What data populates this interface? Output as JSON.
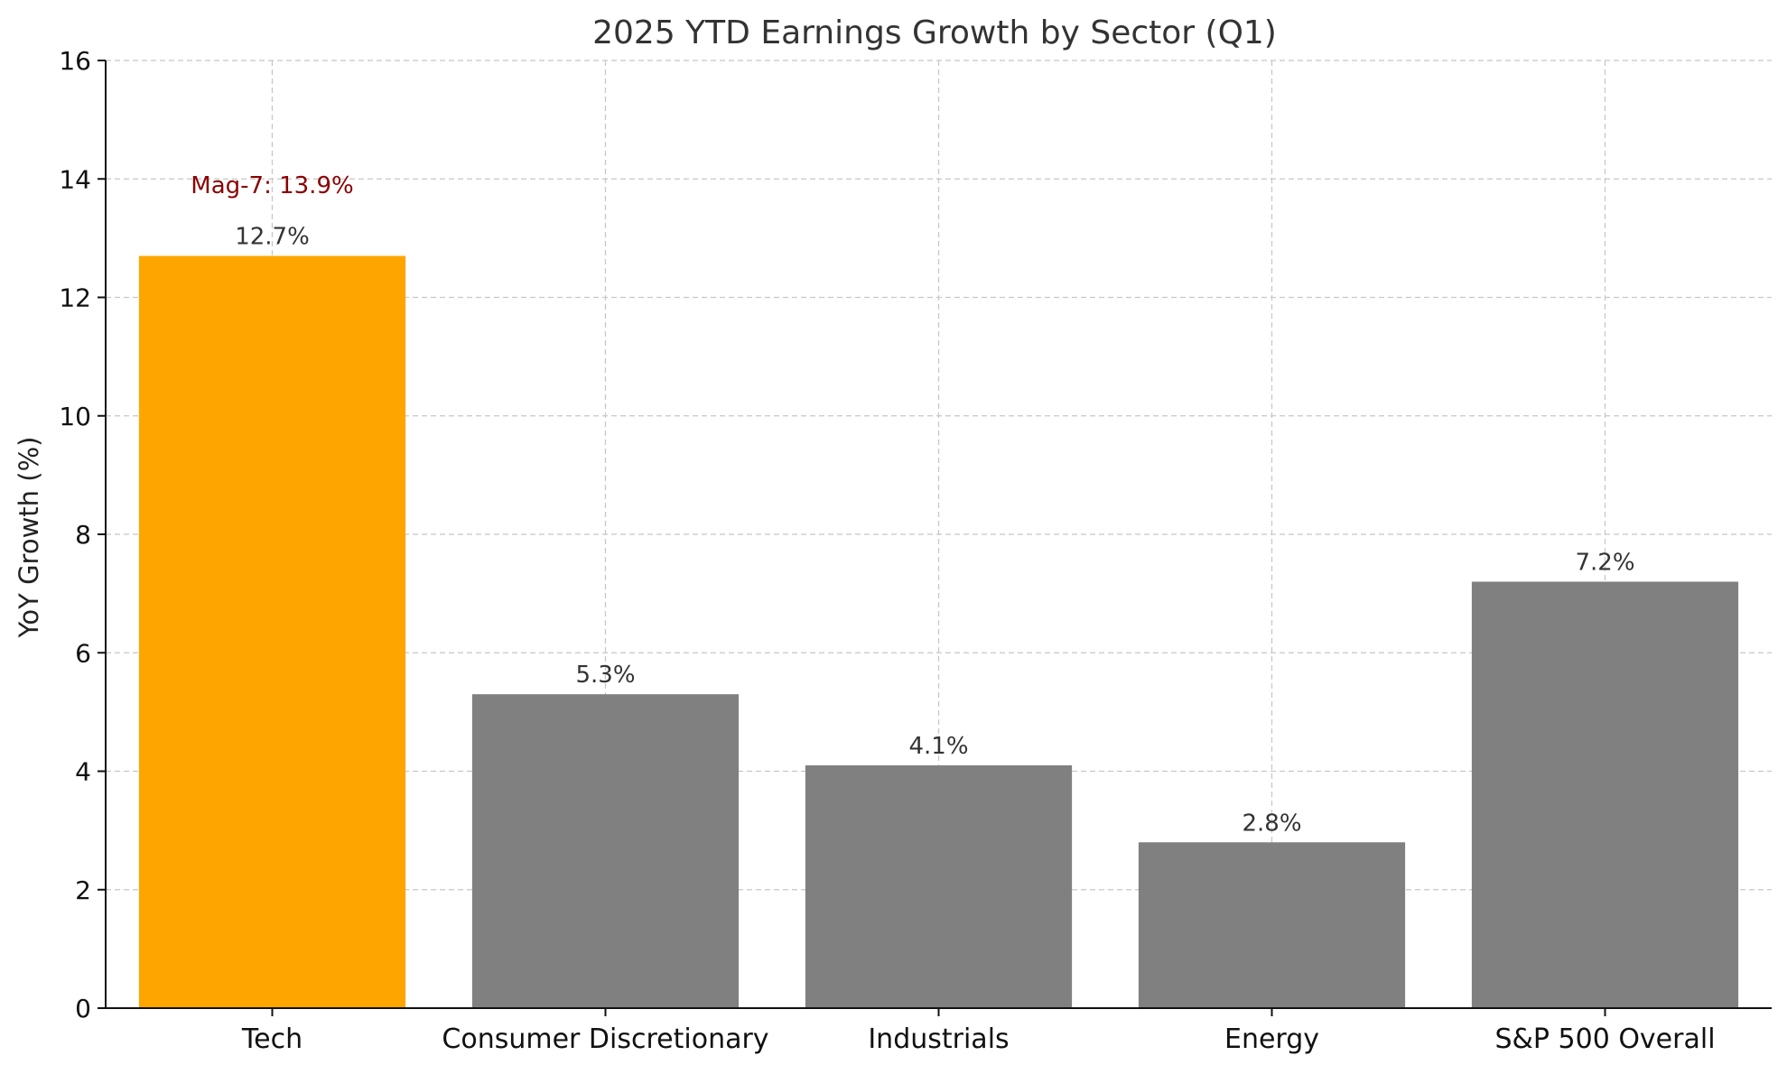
{
  "chart_data": {
    "type": "bar",
    "title": "2025 YTD Earnings Growth by Sector (Q1)",
    "xlabel": "",
    "ylabel": "YoY Growth (%)",
    "ylim": [
      0,
      16
    ],
    "yticks": [
      0,
      2,
      4,
      6,
      8,
      10,
      12,
      14,
      16
    ],
    "grid": true,
    "categories": [
      "Tech",
      "Consumer Discretionary",
      "Industrials",
      "Energy",
      "S&P 500 Overall"
    ],
    "values": [
      12.7,
      5.3,
      4.1,
      2.8,
      7.2
    ],
    "value_labels": [
      "12.7%",
      "5.3%",
      "4.1%",
      "2.8%",
      "7.2%"
    ],
    "colors": [
      "#ffa500",
      "#808080",
      "#808080",
      "#808080",
      "#808080"
    ],
    "annotations": [
      {
        "text": "Mag-7: 13.9%",
        "category": "Tech",
        "y": 13.9,
        "color": "#8b0000"
      }
    ]
  }
}
